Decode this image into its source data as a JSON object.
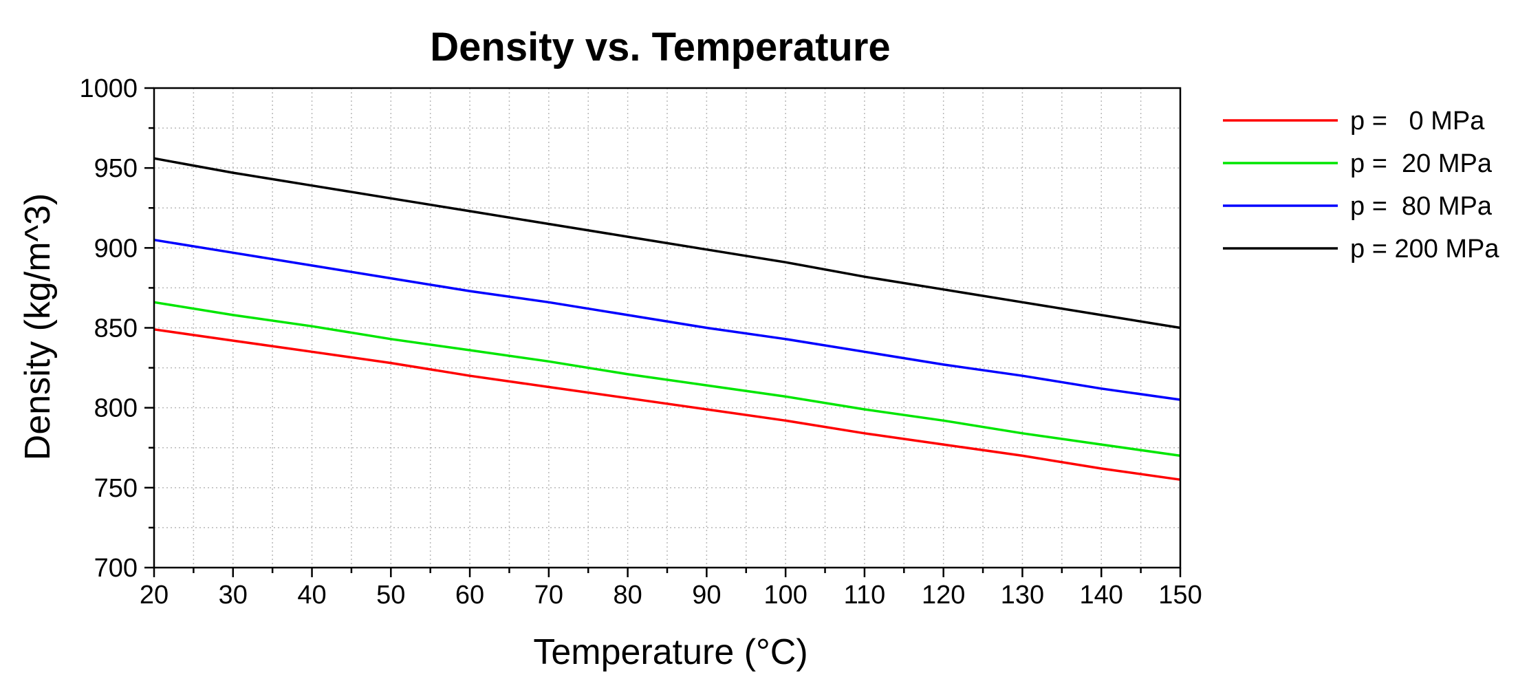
{
  "chart_data": {
    "type": "line",
    "title": "Density vs. Temperature",
    "xlabel": "Temperature (°C)",
    "ylabel": "Density (kg/m^3)",
    "xlim": [
      20,
      150
    ],
    "ylim": [
      700,
      1000
    ],
    "x_ticks": [
      20,
      30,
      40,
      50,
      60,
      70,
      80,
      90,
      100,
      110,
      120,
      130,
      140,
      150
    ],
    "y_ticks": [
      700,
      750,
      800,
      850,
      900,
      950,
      1000
    ],
    "x_minor_step": 5,
    "y_minor_step": 25,
    "grid": true,
    "legend_position": "right",
    "x": [
      20,
      30,
      40,
      50,
      60,
      70,
      80,
      90,
      100,
      110,
      120,
      130,
      140,
      150
    ],
    "series": [
      {
        "name": "p =   0 MPa",
        "color": "#ff0000",
        "values": [
          849,
          842,
          835,
          828,
          820,
          813,
          806,
          799,
          792,
          784,
          777,
          770,
          762,
          755
        ]
      },
      {
        "name": "p =  20 MPa",
        "color": "#00e600",
        "values": [
          866,
          858,
          851,
          843,
          836,
          829,
          821,
          814,
          807,
          799,
          792,
          784,
          777,
          770
        ]
      },
      {
        "name": "p =  80 MPa",
        "color": "#0000ff",
        "values": [
          905,
          897,
          889,
          881,
          873,
          866,
          858,
          850,
          843,
          835,
          827,
          820,
          812,
          805
        ]
      },
      {
        "name": "p = 200 MPa",
        "color": "#000000",
        "values": [
          956,
          947,
          939,
          931,
          923,
          915,
          907,
          899,
          891,
          882,
          874,
          866,
          858,
          850
        ]
      }
    ]
  }
}
